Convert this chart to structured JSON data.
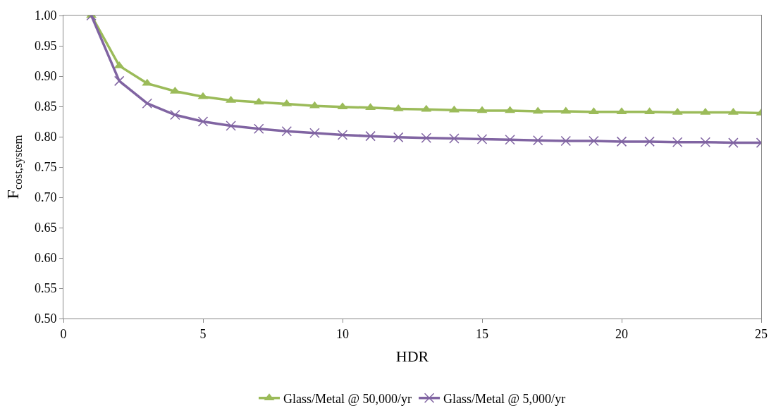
{
  "chart_data": {
    "type": "line",
    "xlabel": "HDR",
    "ylabel": "F$_{cost,system}$",
    "x": [
      1,
      2,
      3,
      4,
      5,
      6,
      7,
      8,
      9,
      10,
      11,
      12,
      13,
      14,
      15,
      16,
      17,
      18,
      19,
      20,
      21,
      22,
      23,
      24,
      25
    ],
    "series": [
      {
        "name": "Glass/Metal @ 50,000/yr",
        "color": "#9bbb59",
        "marker": "triangle",
        "values": [
          1.0,
          0.917,
          0.888,
          0.875,
          0.866,
          0.86,
          0.857,
          0.854,
          0.851,
          0.849,
          0.848,
          0.846,
          0.845,
          0.844,
          0.843,
          0.843,
          0.842,
          0.842,
          0.841,
          0.841,
          0.841,
          0.84,
          0.84,
          0.84,
          0.839
        ]
      },
      {
        "name": "Glass/Metal @ 5,000/yr",
        "color": "#8064a2",
        "marker": "cross",
        "values": [
          1.0,
          0.892,
          0.855,
          0.836,
          0.825,
          0.818,
          0.813,
          0.809,
          0.806,
          0.803,
          0.801,
          0.799,
          0.798,
          0.797,
          0.796,
          0.795,
          0.794,
          0.793,
          0.793,
          0.792,
          0.792,
          0.791,
          0.791,
          0.79,
          0.79
        ]
      }
    ],
    "xlim": [
      0,
      25
    ],
    "xticks": [
      0,
      5,
      10,
      15,
      20,
      25
    ],
    "ylim": [
      0.5,
      1.0
    ],
    "yticks": [
      {
        "value": 0.5,
        "label": "0.50"
      },
      {
        "value": 0.55,
        "label": "0.55"
      },
      {
        "value": 0.6,
        "label": "0.60"
      },
      {
        "value": 0.65,
        "label": "0.65"
      },
      {
        "value": 0.7,
        "label": "0.70"
      },
      {
        "value": 0.75,
        "label": "0.75"
      },
      {
        "value": 0.8,
        "label": "0.80"
      },
      {
        "value": 0.85,
        "label": "0.85"
      },
      {
        "value": 0.9,
        "label": "0.90"
      },
      {
        "value": 0.95,
        "label": "0.95"
      },
      {
        "value": 1.0,
        "label": "1.00"
      }
    ],
    "legend": "bottom",
    "line_style": "solid"
  }
}
